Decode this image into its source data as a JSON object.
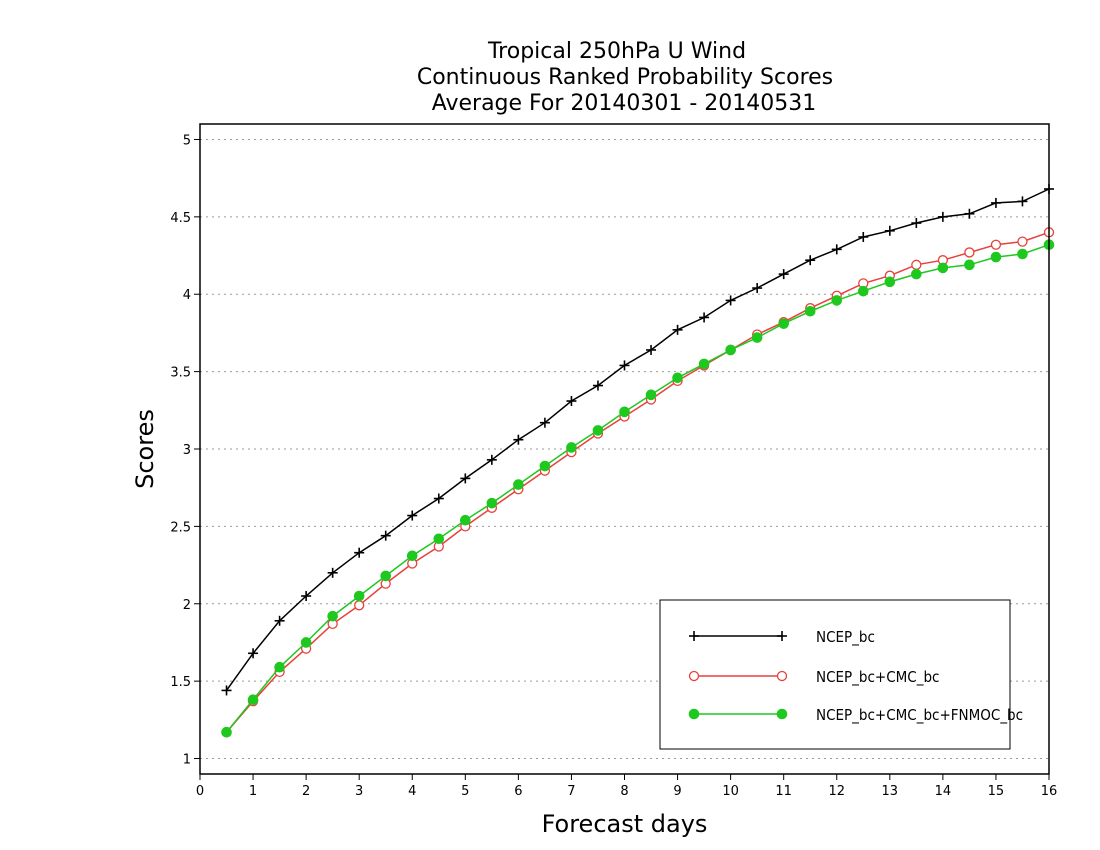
{
  "chart_data": {
    "type": "line",
    "title": [
      "Tropical 250hPa U Wind",
      "Continuous Ranked Probability Scores",
      "Average For 20140301 - 20140531"
    ],
    "xlabel": "Forecast days",
    "ylabel": "Scores",
    "xlim": [
      0,
      16
    ],
    "ylim": [
      0.9,
      5.1
    ],
    "xticks": [
      "0",
      "1",
      "2",
      "3",
      "4",
      "5",
      "6",
      "7",
      "8",
      "9",
      "10",
      "11",
      "12",
      "13",
      "14",
      "15",
      "16"
    ],
    "yticks": [
      "1",
      "1.5",
      "2",
      "2.5",
      "3",
      "3.5",
      "4",
      "4.5",
      "5"
    ],
    "grid": "horizontal dotted",
    "legend_position": "bottom-right",
    "x": [
      0.5,
      1,
      1.5,
      2,
      2.5,
      3,
      3.5,
      4,
      4.5,
      5,
      5.5,
      6,
      6.5,
      7,
      7.5,
      8,
      8.5,
      9,
      9.5,
      10,
      10.5,
      11,
      11.5,
      12,
      12.5,
      13,
      13.5,
      14,
      14.5,
      15,
      15.5,
      16
    ],
    "series": [
      {
        "name": "NCEP_bc",
        "color": "#000000",
        "marker": "plus",
        "values": [
          1.44,
          1.68,
          1.89,
          2.05,
          2.2,
          2.33,
          2.44,
          2.57,
          2.68,
          2.81,
          2.93,
          3.06,
          3.17,
          3.31,
          3.41,
          3.54,
          3.64,
          3.77,
          3.85,
          3.96,
          4.04,
          4.13,
          4.22,
          4.29,
          4.37,
          4.41,
          4.46,
          4.5,
          4.52,
          4.59,
          4.6,
          4.68
        ]
      },
      {
        "name": "NCEP_bc+CMC_bc",
        "color": "#e8403a",
        "marker": "open-circle",
        "values": [
          1.17,
          1.37,
          1.56,
          1.71,
          1.87,
          1.99,
          2.13,
          2.26,
          2.37,
          2.5,
          2.62,
          2.74,
          2.86,
          2.98,
          3.1,
          3.21,
          3.32,
          3.44,
          3.54,
          3.64,
          3.74,
          3.82,
          3.91,
          3.99,
          4.07,
          4.12,
          4.19,
          4.22,
          4.27,
          4.32,
          4.34,
          4.4
        ]
      },
      {
        "name": "NCEP_bc+CMC_bc+FNMOC_bc",
        "color": "#1ec81e",
        "marker": "filled-circle",
        "values": [
          1.17,
          1.38,
          1.59,
          1.75,
          1.92,
          2.05,
          2.18,
          2.31,
          2.42,
          2.54,
          2.65,
          2.77,
          2.89,
          3.01,
          3.12,
          3.24,
          3.35,
          3.46,
          3.55,
          3.64,
          3.72,
          3.81,
          3.89,
          3.96,
          4.02,
          4.08,
          4.13,
          4.17,
          4.19,
          4.24,
          4.26,
          4.32
        ]
      }
    ]
  }
}
